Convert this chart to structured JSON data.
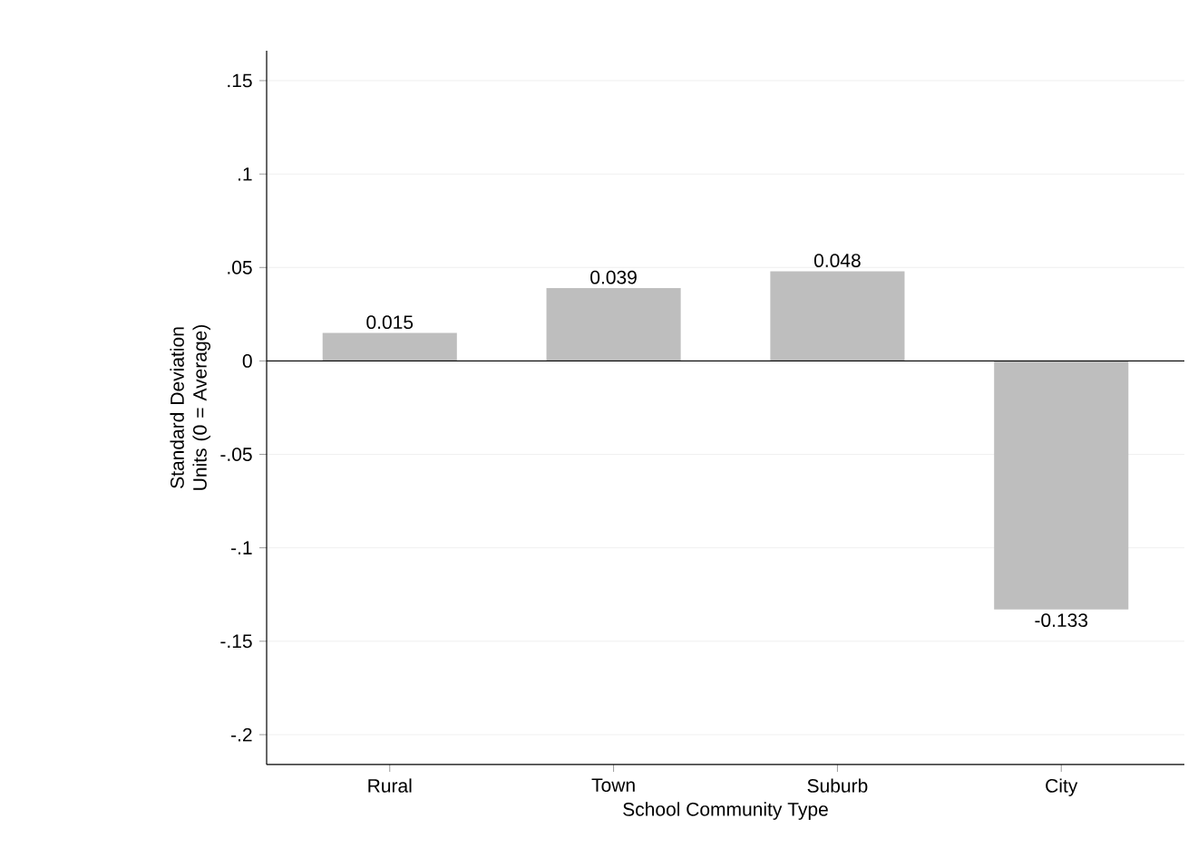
{
  "chart_data": {
    "type": "bar",
    "xlabel": "School Community Type",
    "ylabel": "Standard Deviation Units (0 = Average)",
    "categories": [
      "Rural",
      "Town",
      "Suburb",
      "City"
    ],
    "values": [
      0.015,
      0.039,
      0.048,
      -0.133
    ],
    "color": "#bebebe",
    "ylim": [
      -0.216,
      0.166
    ],
    "yticks": [
      {
        "value": -0.2,
        "label": "-.2"
      },
      {
        "value": -0.15,
        "label": "-.15"
      },
      {
        "value": -0.1,
        "label": "-.1"
      },
      {
        "value": -0.05,
        "label": "-.05"
      },
      0,
      {
        "value": 0.05,
        "label": ".05"
      },
      {
        "value": 0.1,
        "label": ".1"
      },
      {
        "value": 0.15,
        "label": ".15"
      }
    ],
    "grid": "y",
    "data_labels": true,
    "ref_lines": [
      {
        "axis": "y",
        "value": 0,
        "color": "#000000"
      }
    ]
  }
}
